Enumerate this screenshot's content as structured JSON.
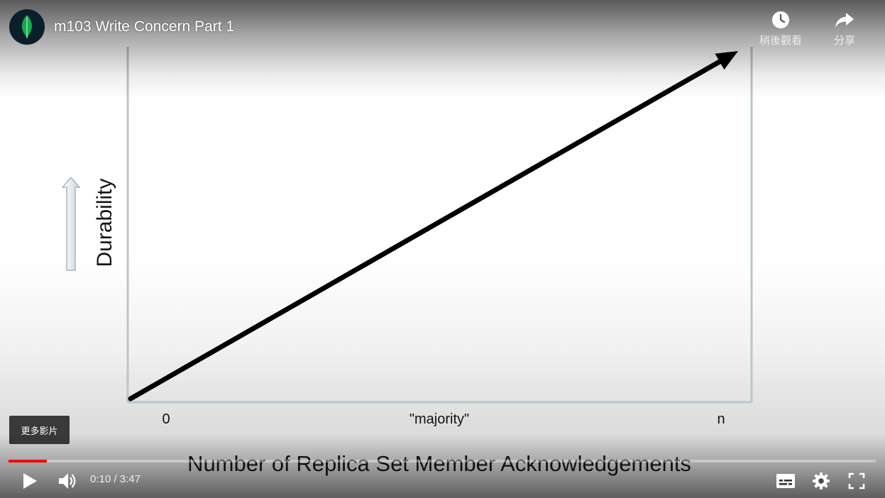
{
  "player": {
    "video_title": "m103 Write Concern Part 1",
    "watch_later_label": "稍後觀看",
    "share_label": "分享",
    "more_videos_label": "更多影片",
    "current_time": "0:10",
    "time_separator": " / ",
    "duration": "3:47",
    "progress_fraction": 0.044,
    "accent_color": "#ff0000"
  },
  "icons": {
    "channel_avatar": "mongodb-leaf-icon",
    "watch_later": "clock-icon",
    "share": "share-arrow-icon",
    "play": "play-icon",
    "volume": "volume-icon",
    "subtitles": "subtitles-icon",
    "settings": "gear-icon",
    "fullscreen": "fullscreen-icon"
  },
  "slide": {
    "y_axis_title": "Durability",
    "x_axis_title": "Number of Replica Set Member Acknowledgements",
    "x_ticks": [
      "0",
      "\"majority\"",
      "n"
    ]
  },
  "chart_data": {
    "type": "line",
    "title": "",
    "xlabel": "Number of Replica Set Member Acknowledgements",
    "ylabel": "Durability",
    "categories": [
      "0",
      "\"majority\"",
      "n"
    ],
    "series": [
      {
        "values": [
          0,
          50,
          100
        ]
      }
    ],
    "grid": false,
    "legend": "none"
  }
}
